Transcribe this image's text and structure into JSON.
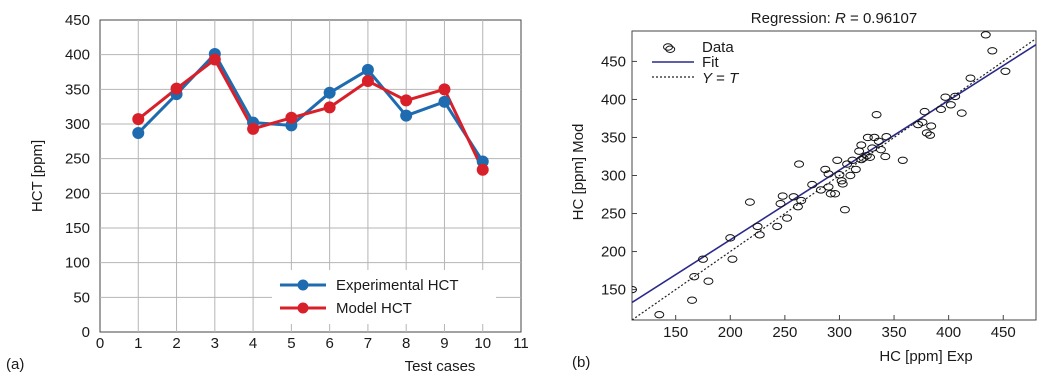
{
  "chart_data": [
    {
      "type": "line",
      "panel_label": "(a)",
      "xlabel": "Test cases",
      "ylabel": "HCT [ppm]",
      "xlim": [
        0,
        11
      ],
      "ylim": [
        0,
        450
      ],
      "xticks": [
        "0",
        "1",
        "2",
        "3",
        "4",
        "5",
        "6",
        "7",
        "8",
        "9",
        "10",
        "11"
      ],
      "yticks": [
        "0",
        "50",
        "100",
        "150",
        "200",
        "250",
        "300",
        "350",
        "400",
        "450"
      ],
      "grid": true,
      "legend_position": "bottom-right",
      "x": [
        1,
        2,
        3,
        4,
        5,
        6,
        7,
        8,
        9,
        10
      ],
      "series": [
        {
          "name": "Experimental HCT",
          "color": "#1f6bb0",
          "values": [
            287,
            343,
            401,
            302,
            298,
            345,
            378,
            312,
            332,
            246
          ]
        },
        {
          "name": "Model HCT",
          "color": "#d8202a",
          "values": [
            307,
            351,
            393,
            293,
            309,
            324,
            362,
            334,
            350,
            234
          ]
        }
      ]
    },
    {
      "type": "scatter",
      "panel_label": "(b)",
      "title": "Regression: R = 0.96107",
      "xlabel": "HC [ppm] Exp",
      "ylabel": "HC [ppm] Mod",
      "xlim": [
        110,
        480
      ],
      "ylim": [
        110,
        490
      ],
      "xticks": [
        "150",
        "200",
        "250",
        "300",
        "350",
        "400",
        "450"
      ],
      "yticks": [
        "150",
        "200",
        "250",
        "300",
        "350",
        "400",
        "450"
      ],
      "grid": false,
      "legend_position": "top-left",
      "legend": [
        "Data",
        "Fit",
        "Y = T"
      ],
      "fit_color": "#2a2a8a",
      "points": [
        [
          110,
          150
        ],
        [
          135,
          117
        ],
        [
          145,
          466
        ],
        [
          165,
          136
        ],
        [
          167,
          167
        ],
        [
          175,
          190
        ],
        [
          180,
          161
        ],
        [
          200,
          218
        ],
        [
          202,
          190
        ],
        [
          218,
          265
        ],
        [
          225,
          233
        ],
        [
          227,
          222
        ],
        [
          243,
          233
        ],
        [
          246,
          263
        ],
        [
          248,
          273
        ],
        [
          252,
          244
        ],
        [
          258,
          272
        ],
        [
          262,
          259
        ],
        [
          263,
          315
        ],
        [
          265,
          267
        ],
        [
          275,
          288
        ],
        [
          283,
          281
        ],
        [
          287,
          308
        ],
        [
          290,
          302
        ],
        [
          290,
          285
        ],
        [
          292,
          276
        ],
        [
          296,
          276
        ],
        [
          298,
          320
        ],
        [
          300,
          301
        ],
        [
          302,
          293
        ],
        [
          303,
          289
        ],
        [
          305,
          255
        ],
        [
          307,
          315
        ],
        [
          310,
          300
        ],
        [
          312,
          320
        ],
        [
          315,
          308
        ],
        [
          318,
          332
        ],
        [
          320,
          321
        ],
        [
          320,
          340
        ],
        [
          322,
          323
        ],
        [
          325,
          326
        ],
        [
          326,
          350
        ],
        [
          328,
          324
        ],
        [
          330,
          336
        ],
        [
          332,
          350
        ],
        [
          334,
          380
        ],
        [
          336,
          345
        ],
        [
          338,
          334
        ],
        [
          342,
          325
        ],
        [
          343,
          351
        ],
        [
          358,
          320
        ],
        [
          372,
          367
        ],
        [
          376,
          370
        ],
        [
          378,
          384
        ],
        [
          380,
          356
        ],
        [
          383,
          353
        ],
        [
          384,
          365
        ],
        [
          393,
          387
        ],
        [
          397,
          403
        ],
        [
          402,
          393
        ],
        [
          406,
          404
        ],
        [
          412,
          382
        ],
        [
          420,
          428
        ],
        [
          434,
          485
        ],
        [
          440,
          464
        ],
        [
          452,
          437
        ]
      ],
      "fit_line": {
        "x": [
          110,
          480
        ],
        "y": [
          133,
          472
        ]
      },
      "identity_line": {
        "x": [
          110,
          480
        ],
        "y": [
          110,
          480
        ]
      }
    }
  ]
}
